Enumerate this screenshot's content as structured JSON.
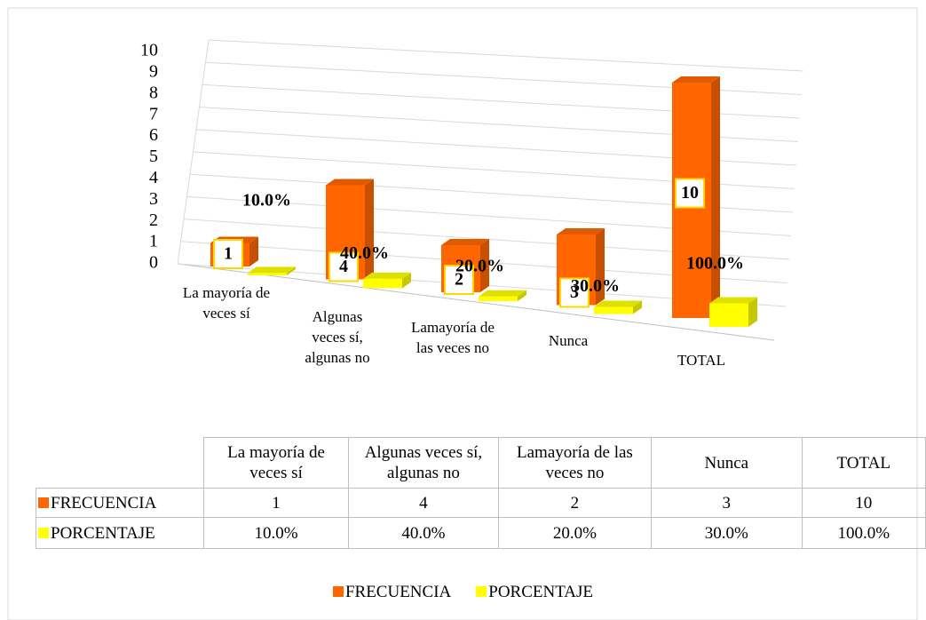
{
  "chart_data": {
    "type": "bar3d",
    "categories": [
      "La mayoría de veces sí",
      "Algunas veces sí, algunas no",
      "Lamayoría de las veces no",
      "Nunca",
      "TOTAL"
    ],
    "series": [
      {
        "name": "FRECUENCIA",
        "color": "#ff6600",
        "values": [
          1,
          4,
          2,
          3,
          10
        ]
      },
      {
        "name": "PORCENTAJE",
        "color": "#ffff00",
        "values": [
          0.1,
          0.4,
          0.2,
          0.3,
          1.0
        ],
        "value_labels": [
          "10.0%",
          "40.0%",
          "20.0%",
          "30.0%",
          "100.0%"
        ]
      }
    ],
    "ylim": [
      0,
      10
    ],
    "yticks": [
      0,
      1,
      2,
      3,
      4,
      5,
      6,
      7,
      8,
      9,
      10
    ],
    "grid": true,
    "legend": "bottom",
    "data_table": true
  }
}
